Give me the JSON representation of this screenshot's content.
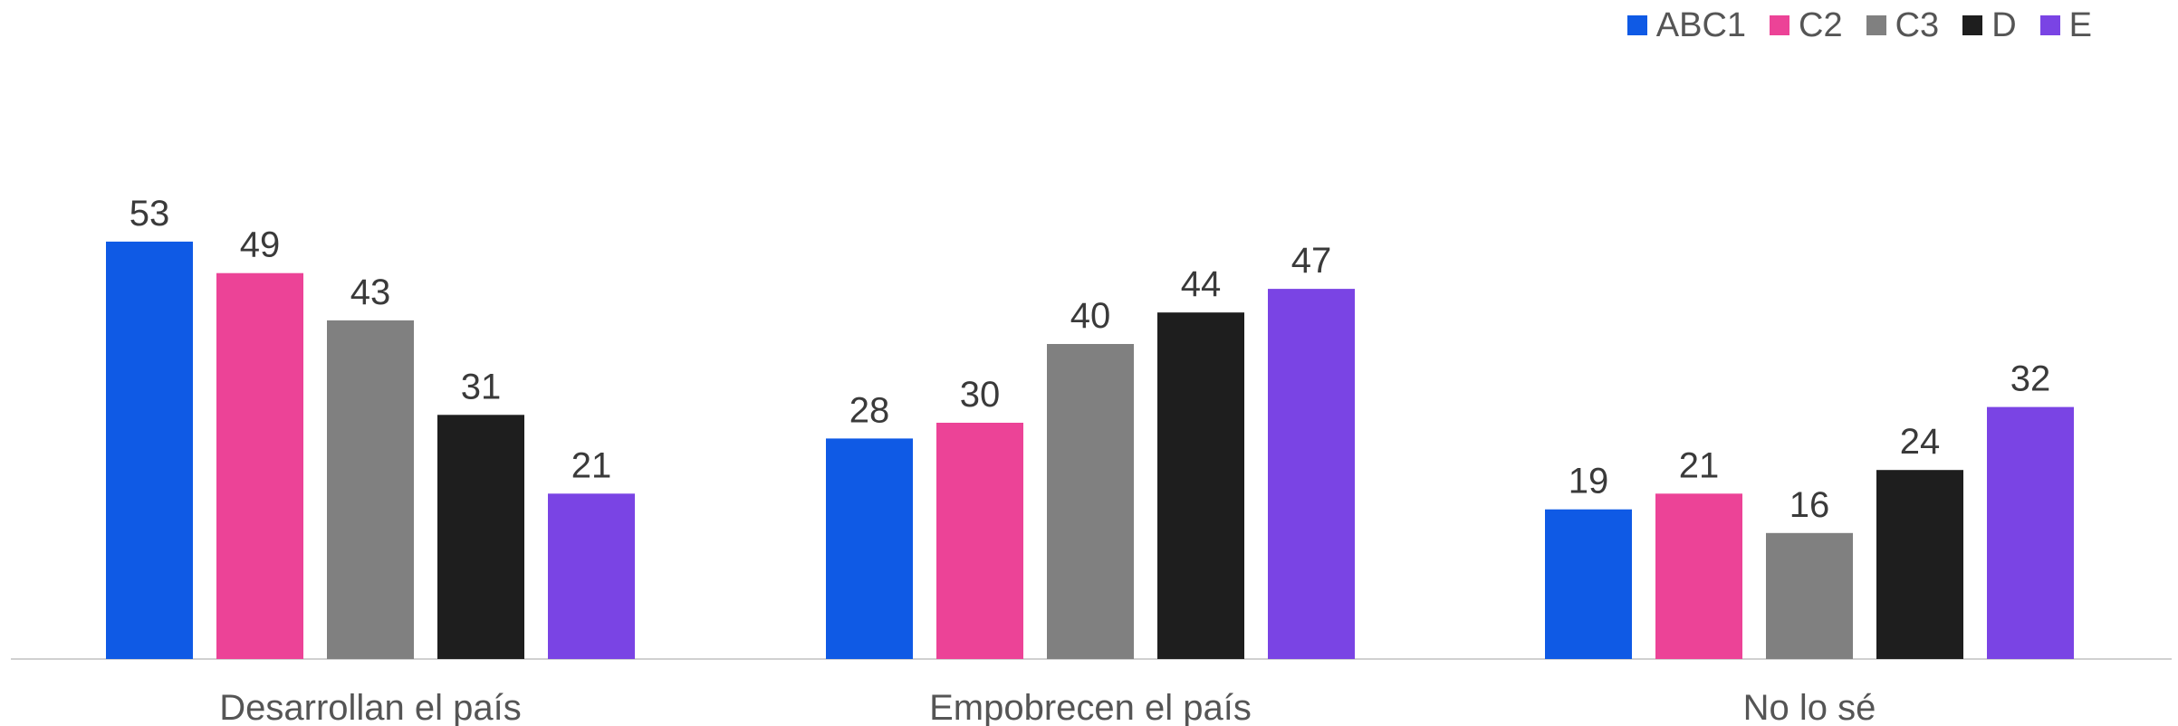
{
  "chart_data": {
    "type": "bar",
    "categories": [
      "Desarrollan el país",
      "Empobrecen el país",
      "No lo sé"
    ],
    "series": [
      {
        "name": "ABC1",
        "color": "#0f5ae5",
        "values": [
          53,
          28,
          19
        ]
      },
      {
        "name": "C2",
        "color": "#ec4397",
        "values": [
          49,
          30,
          21
        ]
      },
      {
        "name": "C3",
        "color": "#808080",
        "values": [
          43,
          40,
          16
        ]
      },
      {
        "name": "D",
        "color": "#1e1e1e",
        "values": [
          31,
          44,
          24
        ]
      },
      {
        "name": "E",
        "color": "#7a44e4",
        "values": [
          21,
          47,
          32
        ]
      }
    ],
    "ylim": [
      0,
      70
    ],
    "grid": false,
    "legend_position": "top-right",
    "data_labels": true
  }
}
